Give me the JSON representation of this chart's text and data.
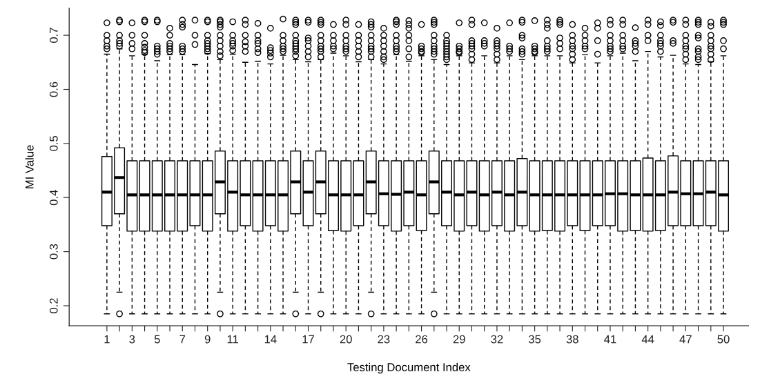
{
  "chart_data": {
    "type": "box",
    "xlabel": "Testing Document Index",
    "ylabel": "MI Value",
    "categories": [
      "1",
      null,
      "3",
      null,
      "5",
      null,
      "7",
      null,
      "9",
      null,
      "11",
      null,
      null,
      "14",
      null,
      null,
      "17",
      null,
      null,
      "20",
      null,
      null,
      "23",
      null,
      null,
      "26",
      null,
      null,
      "29",
      null,
      null,
      "32",
      null,
      null,
      "35",
      null,
      null,
      "38",
      null,
      null,
      "41",
      null,
      null,
      "44",
      null,
      null,
      "47",
      null,
      null,
      "50"
    ],
    "ylim": [
      0.163,
      0.75
    ],
    "yticks": [
      0.2,
      0.3,
      0.4,
      0.5,
      0.6,
      0.7
    ],
    "grid": false,
    "color": "#000000",
    "boxes": [
      {
        "low": 0.185,
        "q1": 0.348,
        "median": 0.41,
        "q3": 0.476,
        "high": 0.665,
        "outliers": [
          0.723,
          0.7,
          0.69,
          0.68,
          0.675
        ]
      },
      {
        "low": 0.225,
        "q1": 0.37,
        "median": 0.437,
        "q3": 0.492,
        "high": 0.675,
        "outliers": [
          0.728,
          0.725,
          0.7,
          0.69,
          0.685,
          0.68,
          0.185
        ]
      },
      {
        "low": 0.185,
        "q1": 0.338,
        "median": 0.405,
        "q3": 0.468,
        "high": 0.662,
        "outliers": [
          0.723,
          0.7,
          0.685,
          0.675
        ]
      },
      {
        "low": 0.185,
        "q1": 0.338,
        "median": 0.405,
        "q3": 0.468,
        "high": 0.665,
        "outliers": [
          0.728,
          0.725,
          0.7,
          0.685,
          0.678,
          0.672,
          0.668
        ]
      },
      {
        "low": 0.185,
        "q1": 0.338,
        "median": 0.405,
        "q3": 0.468,
        "high": 0.653,
        "outliers": [
          0.728,
          0.725,
          0.68,
          0.675,
          0.67,
          0.665
        ]
      },
      {
        "low": 0.185,
        "q1": 0.338,
        "median": 0.405,
        "q3": 0.468,
        "high": 0.664,
        "outliers": [
          0.713,
          0.7,
          0.685,
          0.68,
          0.675,
          0.67
        ]
      },
      {
        "low": 0.185,
        "q1": 0.338,
        "median": 0.405,
        "q3": 0.468,
        "high": 0.664,
        "outliers": [
          0.728,
          0.72,
          0.715,
          0.68,
          0.675,
          0.67
        ]
      },
      {
        "low": 0.185,
        "q1": 0.348,
        "median": 0.405,
        "q3": 0.468,
        "high": 0.646,
        "outliers": [
          0.728,
          0.7,
          0.683
        ]
      },
      {
        "low": 0.185,
        "q1": 0.338,
        "median": 0.405,
        "q3": 0.468,
        "high": 0.666,
        "outliers": [
          0.728,
          0.725,
          0.7,
          0.69,
          0.685,
          0.68,
          0.675,
          0.67
        ]
      },
      {
        "low": 0.225,
        "q1": 0.37,
        "median": 0.429,
        "q3": 0.486,
        "high": 0.655,
        "outliers": [
          0.728,
          0.725,
          0.72,
          0.715,
          0.7,
          0.69,
          0.68,
          0.67,
          0.662,
          0.185
        ]
      },
      {
        "low": 0.185,
        "q1": 0.338,
        "median": 0.41,
        "q3": 0.468,
        "high": 0.665,
        "outliers": [
          0.725,
          0.7,
          0.69,
          0.685,
          0.68,
          0.672
        ]
      },
      {
        "low": 0.185,
        "q1": 0.348,
        "median": 0.405,
        "q3": 0.468,
        "high": 0.65,
        "outliers": [
          0.728,
          0.72,
          0.7,
          0.688,
          0.68,
          0.67
        ]
      },
      {
        "low": 0.185,
        "q1": 0.338,
        "median": 0.405,
        "q3": 0.468,
        "high": 0.652,
        "outliers": [
          0.722,
          0.7,
          0.69,
          0.685,
          0.675,
          0.668
        ]
      },
      {
        "low": 0.185,
        "q1": 0.348,
        "median": 0.405,
        "q3": 0.468,
        "high": 0.647,
        "outliers": [
          0.713,
          0.677,
          0.672,
          0.667,
          0.66
        ]
      },
      {
        "low": 0.185,
        "q1": 0.338,
        "median": 0.405,
        "q3": 0.468,
        "high": 0.663,
        "outliers": [
          0.73,
          0.7,
          0.69,
          0.68,
          0.675,
          0.67
        ]
      },
      {
        "low": 0.225,
        "q1": 0.37,
        "median": 0.429,
        "q3": 0.486,
        "high": 0.655,
        "outliers": [
          0.728,
          0.724,
          0.72,
          0.7,
          0.69,
          0.685,
          0.68,
          0.675,
          0.67,
          0.662,
          0.185
        ]
      },
      {
        "low": 0.185,
        "q1": 0.348,
        "median": 0.41,
        "q3": 0.468,
        "high": 0.651,
        "outliers": [
          0.728,
          0.724,
          0.695,
          0.69,
          0.68,
          0.67,
          0.66
        ]
      },
      {
        "low": 0.225,
        "q1": 0.37,
        "median": 0.429,
        "q3": 0.486,
        "high": 0.655,
        "outliers": [
          0.728,
          0.724,
          0.72,
          0.7,
          0.69,
          0.68,
          0.675,
          0.67,
          0.66,
          0.185
        ]
      },
      {
        "low": 0.185,
        "q1": 0.339,
        "median": 0.405,
        "q3": 0.468,
        "high": 0.667,
        "outliers": [
          0.72,
          0.7,
          0.69,
          0.68,
          0.675
        ]
      },
      {
        "low": 0.185,
        "q1": 0.338,
        "median": 0.405,
        "q3": 0.468,
        "high": 0.662,
        "outliers": [
          0.728,
          0.72,
          0.7,
          0.69,
          0.68,
          0.675,
          0.67
        ]
      },
      {
        "low": 0.185,
        "q1": 0.348,
        "median": 0.405,
        "q3": 0.468,
        "high": 0.651,
        "outliers": [
          0.72,
          0.7,
          0.69,
          0.68,
          0.67,
          0.66
        ]
      },
      {
        "low": 0.225,
        "q1": 0.37,
        "median": 0.429,
        "q3": 0.486,
        "high": 0.655,
        "outliers": [
          0.725,
          0.72,
          0.715,
          0.7,
          0.69,
          0.68,
          0.675,
          0.67,
          0.66,
          0.185
        ]
      },
      {
        "low": 0.185,
        "q1": 0.348,
        "median": 0.407,
        "q3": 0.468,
        "high": 0.647,
        "outliers": [
          0.713,
          0.7,
          0.69,
          0.68,
          0.67,
          0.66,
          0.655
        ]
      },
      {
        "low": 0.185,
        "q1": 0.338,
        "median": 0.406,
        "q3": 0.468,
        "high": 0.664,
        "outliers": [
          0.728,
          0.725,
          0.72,
          0.7,
          0.69,
          0.68,
          0.675,
          0.67
        ]
      },
      {
        "low": 0.185,
        "q1": 0.348,
        "median": 0.41,
        "q3": 0.468,
        "high": 0.652,
        "outliers": [
          0.727,
          0.72,
          0.713,
          0.7,
          0.69,
          0.675,
          0.66
        ]
      },
      {
        "low": 0.185,
        "q1": 0.339,
        "median": 0.405,
        "q3": 0.468,
        "high": 0.662,
        "outliers": [
          0.72,
          0.68,
          0.675,
          0.67,
          0.668
        ]
      },
      {
        "low": 0.225,
        "q1": 0.37,
        "median": 0.429,
        "q3": 0.486,
        "high": 0.655,
        "outliers": [
          0.728,
          0.724,
          0.72,
          0.7,
          0.69,
          0.68,
          0.675,
          0.67,
          0.665,
          0.185
        ]
      },
      {
        "low": 0.185,
        "q1": 0.348,
        "median": 0.41,
        "q3": 0.468,
        "high": 0.646,
        "outliers": [
          0.7,
          0.69,
          0.685,
          0.68,
          0.675,
          0.67,
          0.665,
          0.66,
          0.655
        ]
      },
      {
        "low": 0.185,
        "q1": 0.338,
        "median": 0.405,
        "q3": 0.468,
        "high": 0.662,
        "outliers": [
          0.723,
          0.68,
          0.675,
          0.67,
          0.668
        ]
      },
      {
        "low": 0.185,
        "q1": 0.348,
        "median": 0.41,
        "q3": 0.468,
        "high": 0.649,
        "outliers": [
          0.728,
          0.72,
          0.69,
          0.685,
          0.68,
          0.675,
          0.665,
          0.655
        ]
      },
      {
        "low": 0.185,
        "q1": 0.338,
        "median": 0.405,
        "q3": 0.468,
        "high": 0.662,
        "outliers": [
          0.723,
          0.69,
          0.685,
          0.68
        ]
      },
      {
        "low": 0.185,
        "q1": 0.348,
        "median": 0.41,
        "q3": 0.468,
        "high": 0.649,
        "outliers": [
          0.713,
          0.69,
          0.685,
          0.68,
          0.675,
          0.665,
          0.655
        ]
      },
      {
        "low": 0.185,
        "q1": 0.338,
        "median": 0.405,
        "q3": 0.468,
        "high": 0.662,
        "outliers": [
          0.723,
          0.68,
          0.675,
          0.67
        ]
      },
      {
        "low": 0.185,
        "q1": 0.348,
        "median": 0.41,
        "q3": 0.472,
        "high": 0.655,
        "outliers": [
          0.728,
          0.724,
          0.7,
          0.695,
          0.675,
          0.67,
          0.665
        ]
      },
      {
        "low": 0.185,
        "q1": 0.338,
        "median": 0.405,
        "q3": 0.468,
        "high": 0.662,
        "outliers": [
          0.727,
          0.68,
          0.675,
          0.67,
          0.668
        ]
      },
      {
        "low": 0.185,
        "q1": 0.339,
        "median": 0.405,
        "q3": 0.468,
        "high": 0.662,
        "outliers": [
          0.728,
          0.72,
          0.713,
          0.69,
          0.68,
          0.675,
          0.67
        ]
      },
      {
        "low": 0.185,
        "q1": 0.338,
        "median": 0.405,
        "q3": 0.468,
        "high": 0.662,
        "outliers": [
          0.728,
          0.724,
          0.72,
          0.695,
          0.685,
          0.675
        ]
      },
      {
        "low": 0.185,
        "q1": 0.348,
        "median": 0.405,
        "q3": 0.468,
        "high": 0.649,
        "outliers": [
          0.72,
          0.7,
          0.69,
          0.68,
          0.675,
          0.665,
          0.655
        ]
      },
      {
        "low": 0.185,
        "q1": 0.339,
        "median": 0.405,
        "q3": 0.468,
        "high": 0.664,
        "outliers": [
          0.713,
          0.7,
          0.69,
          0.68,
          0.675
        ]
      },
      {
        "low": 0.185,
        "q1": 0.348,
        "median": 0.405,
        "q3": 0.468,
        "high": 0.649,
        "outliers": [
          0.723,
          0.713,
          0.69,
          0.665
        ]
      },
      {
        "low": 0.185,
        "q1": 0.348,
        "median": 0.407,
        "q3": 0.468,
        "high": 0.662,
        "outliers": [
          0.728,
          0.72,
          0.7,
          0.69,
          0.68,
          0.675,
          0.67
        ]
      },
      {
        "low": 0.185,
        "q1": 0.338,
        "median": 0.407,
        "q3": 0.468,
        "high": 0.667,
        "outliers": [
          0.728,
          0.72,
          0.7,
          0.69,
          0.68,
          0.675
        ]
      },
      {
        "low": 0.185,
        "q1": 0.339,
        "median": 0.405,
        "q3": 0.468,
        "high": 0.653,
        "outliers": [
          0.714,
          0.69,
          0.685,
          0.68,
          0.67
        ]
      },
      {
        "low": 0.185,
        "q1": 0.338,
        "median": 0.405,
        "q3": 0.473,
        "high": 0.67,
        "outliers": [
          0.728,
          0.72,
          0.7,
          0.69
        ]
      },
      {
        "low": 0.185,
        "q1": 0.339,
        "median": 0.405,
        "q3": 0.468,
        "high": 0.66,
        "outliers": [
          0.725,
          0.718,
          0.7,
          0.69,
          0.685,
          0.68,
          0.67
        ]
      },
      {
        "low": 0.185,
        "q1": 0.348,
        "median": 0.41,
        "q3": 0.477,
        "high": 0.663,
        "outliers": [
          0.728,
          0.724,
          0.69,
          0.685
        ]
      },
      {
        "low": 0.185,
        "q1": 0.348,
        "median": 0.407,
        "q3": 0.468,
        "high": 0.647,
        "outliers": [
          0.728,
          0.72,
          0.7,
          0.69,
          0.68,
          0.675,
          0.665,
          0.655
        ]
      },
      {
        "low": 0.185,
        "q1": 0.348,
        "median": 0.407,
        "q3": 0.468,
        "high": 0.646,
        "outliers": [
          0.728,
          0.724,
          0.72,
          0.7,
          0.695,
          0.675,
          0.67,
          0.66,
          0.655
        ]
      },
      {
        "low": 0.185,
        "q1": 0.348,
        "median": 0.41,
        "q3": 0.468,
        "high": 0.651,
        "outliers": [
          0.724,
          0.717,
          0.7,
          0.69,
          0.68,
          0.675,
          0.665,
          0.655
        ]
      },
      {
        "low": 0.185,
        "q1": 0.338,
        "median": 0.405,
        "q3": 0.468,
        "high": 0.662,
        "outliers": [
          0.728,
          0.724,
          0.72,
          0.69,
          0.675
        ]
      }
    ]
  }
}
